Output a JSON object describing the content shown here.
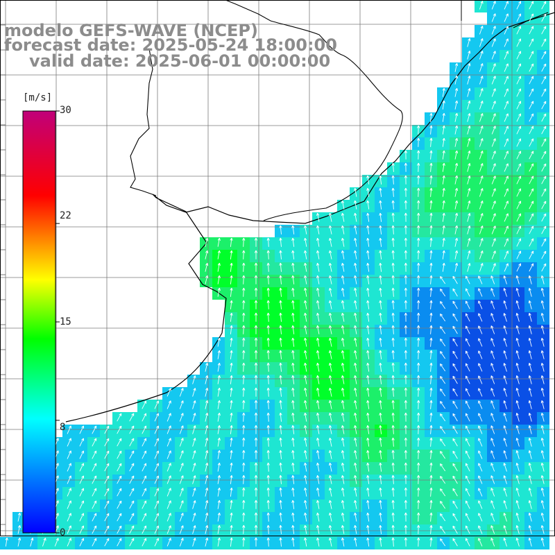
{
  "titles": {
    "line1": "modelo GEFS-WAVE (NCEP)",
    "line2": "forecast date: 2025-05-24 18:00:00",
    "line3": "valid date: 2025-06-01 00:00:00"
  },
  "colorbar": {
    "unit": "[m/s]",
    "ticks": [
      "30",
      "22",
      "15",
      "8",
      "0"
    ],
    "tick_values": [
      30,
      22,
      15,
      8,
      0
    ],
    "min": 0,
    "max": 30,
    "colors": [
      "#0000ff",
      "#00ffff",
      "#00ff00",
      "#ffff00",
      "#ff0000",
      "#c0007a"
    ]
  },
  "map_colors": {
    "background": "#ffffff",
    "grid": "#888888",
    "coast": "#000000",
    "arrow": "#ffffff"
  }
}
